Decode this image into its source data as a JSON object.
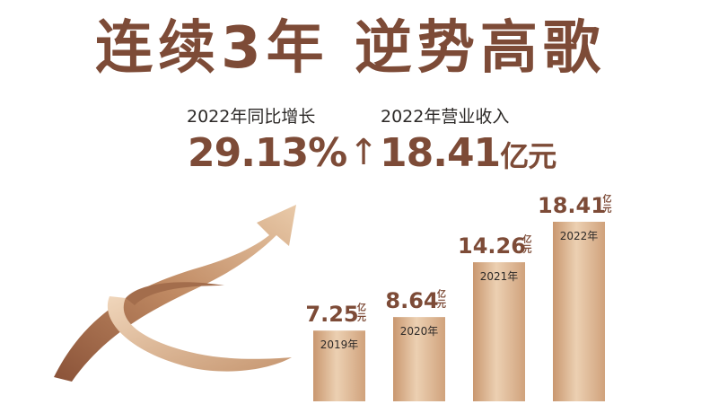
{
  "headline": "连续3年 逆势高歌",
  "stats": {
    "growth_label": "2022年同比增长",
    "growth_value": "29.13%",
    "growth_arrow": "↑",
    "revenue_label": "2022年营业收入",
    "revenue_value": "18.41",
    "revenue_unit": "亿元"
  },
  "chart_data": {
    "type": "bar",
    "categories": [
      "2019年",
      "2020年",
      "2021年",
      "2022年"
    ],
    "values": [
      7.25,
      8.64,
      14.26,
      18.41
    ],
    "value_labels": [
      "7.25",
      "8.64",
      "14.26",
      "18.41"
    ],
    "unit": "亿元",
    "title": "",
    "xlabel": "",
    "ylabel": "",
    "grid": false,
    "legend": "none"
  },
  "colors": {
    "accent": "#7d4b37",
    "bar_light": "#e8c6a5",
    "bar_mid": "#d5a883",
    "bar_dark": "#b98661",
    "arrow_dark": "#8a5238",
    "arrow_light": "#e6c4a5",
    "text": "#2d2a28"
  }
}
